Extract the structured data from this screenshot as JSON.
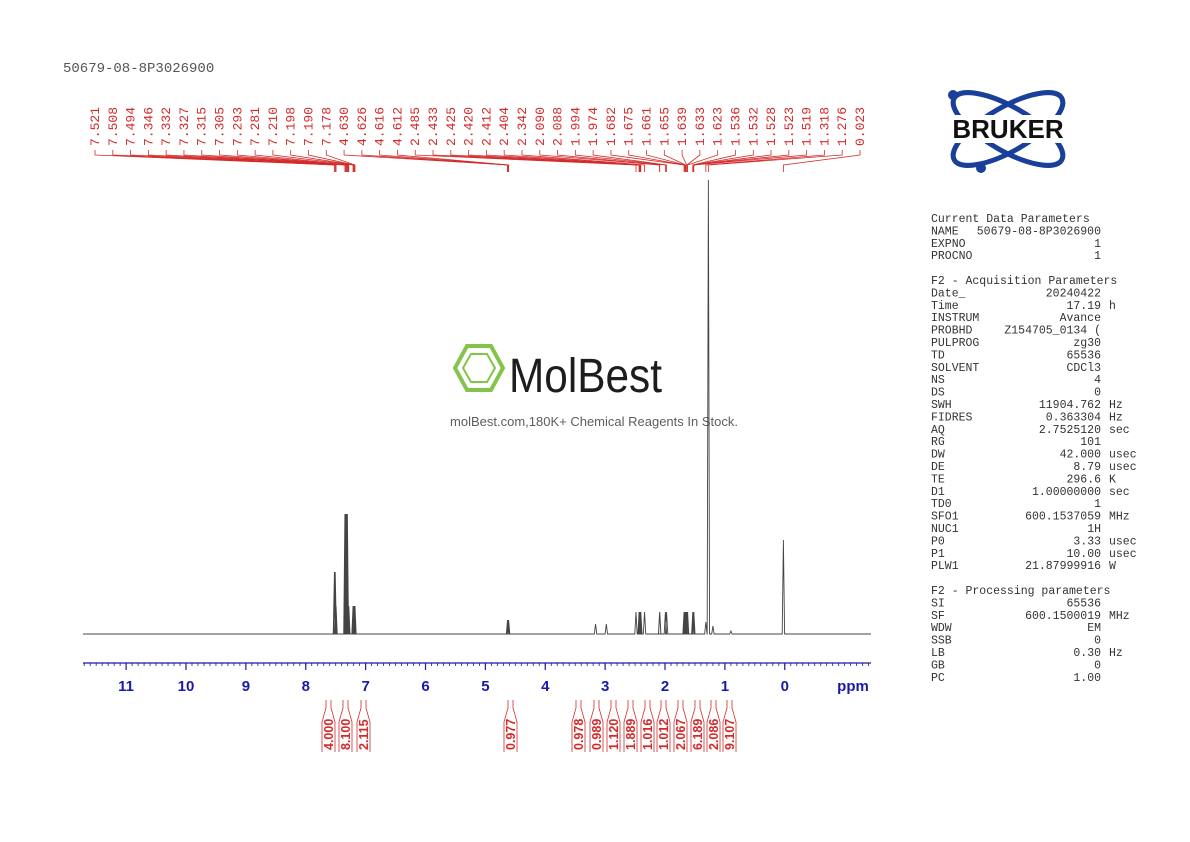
{
  "header": {
    "title": "50679-08-8P3026900"
  },
  "logo": "BRUKER",
  "watermark": {
    "name": "MolBest",
    "tagline": "molBest.com,180K+ Chemical Reagents In Stock."
  },
  "spectrum": {
    "xlim": [
      11.72,
      -1.44
    ],
    "xticks": [
      11,
      10,
      9,
      8,
      7,
      6,
      5,
      4,
      3,
      2,
      1,
      0
    ],
    "xlabel": "ppm",
    "peaks": [
      "7.521",
      "7.508",
      "7.494",
      "7.346",
      "7.332",
      "7.327",
      "7.315",
      "7.305",
      "7.293",
      "7.281",
      "7.210",
      "7.198",
      "7.190",
      "7.178",
      "4.630",
      "4.626",
      "4.616",
      "4.612",
      "2.485",
      "2.433",
      "2.425",
      "2.420",
      "2.412",
      "2.404",
      "2.342",
      "2.090",
      "2.088",
      "1.994",
      "1.974",
      "1.682",
      "1.675",
      "1.661",
      "1.655",
      "1.639",
      "1.633",
      "1.623",
      "1.536",
      "1.532",
      "1.528",
      "1.523",
      "1.519",
      "1.318",
      "1.276",
      "0.023"
    ],
    "integrals": [
      "4.000",
      "8.100",
      "2.115",
      "0.977",
      "0.978",
      "0.989",
      "1.120",
      "1.889",
      "1.016",
      "1.012",
      "2.067",
      "6.189",
      "2.086",
      "9.107"
    ]
  },
  "parameters": [
    {
      "title": "Current Data Parameters",
      "rows": [
        [
          "NAME",
          "50679-08-8P3026900"
        ],
        [
          "EXPNO",
          "1"
        ],
        [
          "PROCNO",
          "1"
        ]
      ]
    },
    {
      "title": "F2 - Acquisition Parameters",
      "rows": [
        [
          "Date_",
          "20240422"
        ],
        [
          "Time",
          "17.19",
          "h"
        ],
        [
          "INSTRUM",
          "Avance"
        ],
        [
          "PROBHD",
          "Z154705_0134 ("
        ],
        [
          "PULPROG",
          "zg30"
        ],
        [
          "TD",
          "65536"
        ],
        [
          "SOLVENT",
          "CDCl3"
        ],
        [
          "NS",
          "4"
        ],
        [
          "DS",
          "0"
        ],
        [
          "SWH",
          "11904.762",
          "Hz"
        ],
        [
          "FIDRES",
          "0.363304",
          "Hz"
        ],
        [
          "AQ",
          "2.7525120",
          "sec"
        ],
        [
          "RG",
          "101"
        ],
        [
          "DW",
          "42.000",
          "usec"
        ],
        [
          "DE",
          "8.79",
          "usec"
        ],
        [
          "TE",
          "296.6",
          "K"
        ],
        [
          "D1",
          "1.00000000",
          "sec"
        ],
        [
          "TD0",
          "1"
        ],
        [
          "SFO1",
          "600.1537059",
          "MHz"
        ],
        [
          "NUC1",
          "1H"
        ],
        [
          "P0",
          "3.33",
          "usec"
        ],
        [
          "P1",
          "10.00",
          "usec"
        ],
        [
          "PLW1",
          "21.87999916",
          "W"
        ]
      ]
    },
    {
      "title": "F2 - Processing parameters",
      "rows": [
        [
          "SI",
          "65536"
        ],
        [
          "SF",
          "600.1500019",
          "MHz"
        ],
        [
          "WDW",
          "EM"
        ],
        [
          "SSB",
          "0"
        ],
        [
          "LB",
          "0.30",
          "Hz"
        ],
        [
          "GB",
          "0"
        ],
        [
          "PC",
          "1.00"
        ]
      ]
    }
  ]
}
